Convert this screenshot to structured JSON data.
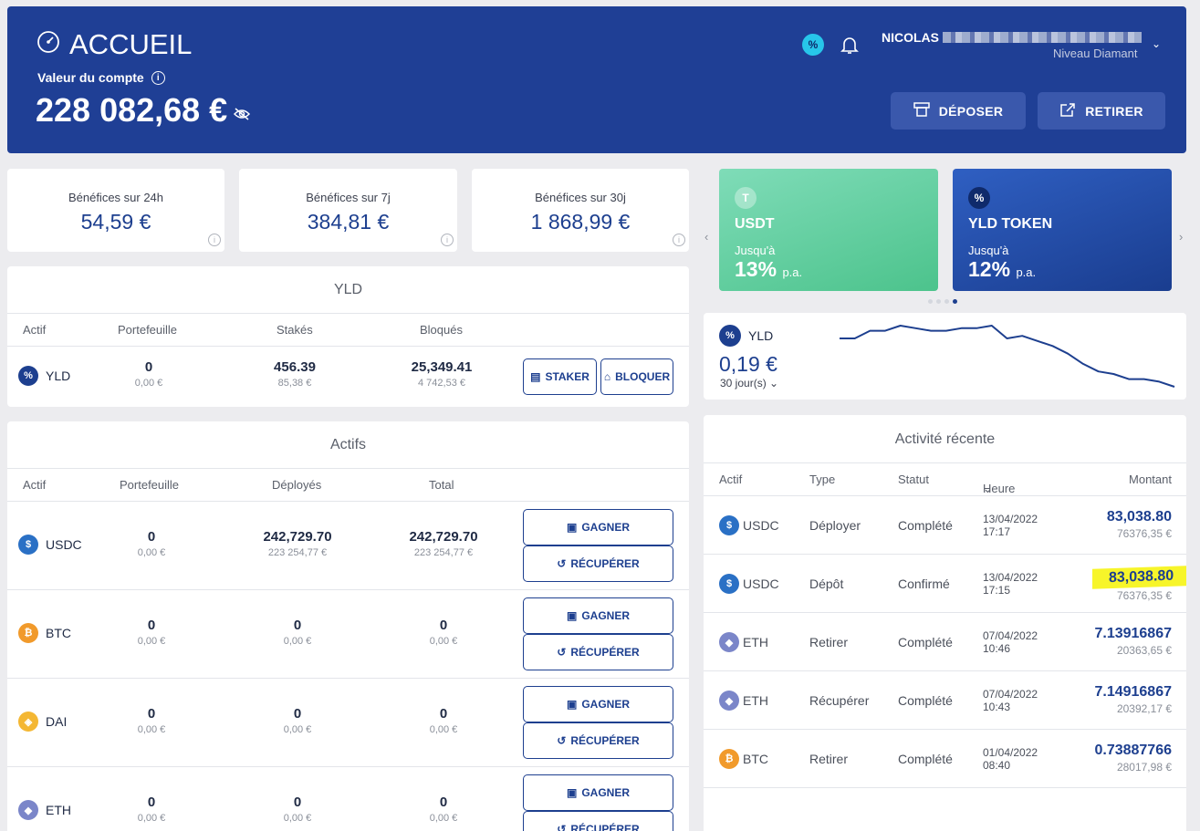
{
  "header": {
    "title": "ACCUEIL",
    "account_label": "Valeur du compte",
    "account_value": "228 082,68 €",
    "user_name": "NICOLAS",
    "user_level": "Niveau Diamant",
    "deposit_label": "DÉPOSER",
    "withdraw_label": "RETIRER"
  },
  "profits": [
    {
      "label": "Bénéfices sur 24h",
      "value": "54,59 €"
    },
    {
      "label": "Bénéfices sur 7j",
      "value": "384,81 €"
    },
    {
      "label": "Bénéfices sur 30j",
      "value": "1 868,99 €"
    }
  ],
  "yld_section": {
    "title": "YLD",
    "headers": [
      "Actif",
      "Portefeuille",
      "Stakés",
      "Bloqués"
    ],
    "row": {
      "asset": "YLD",
      "wallet": "0",
      "wallet_eur": "0,00 €",
      "staked": "456.39",
      "staked_eur": "85,38 €",
      "locked": "25,349.41",
      "locked_eur": "4 742,53 €"
    },
    "stake_label": "STAKER",
    "lock_label": "BLOQUER"
  },
  "actifs_section": {
    "title": "Actifs",
    "headers": [
      "Actif",
      "Portefeuille",
      "Déployés",
      "Total"
    ],
    "earn_label": "GAGNER",
    "recover_label": "RÉCUPÉRER",
    "rows": [
      {
        "asset": "USDC",
        "wallet": "0",
        "wallet_eur": "0,00 €",
        "deployed": "242,729.70",
        "deployed_eur": "223 254,77 €",
        "total": "242,729.70",
        "total_eur": "223 254,77 €"
      },
      {
        "asset": "BTC",
        "wallet": "0",
        "wallet_eur": "0,00 €",
        "deployed": "0",
        "deployed_eur": "0,00 €",
        "total": "0",
        "total_eur": "0,00 €"
      },
      {
        "asset": "DAI",
        "wallet": "0",
        "wallet_eur": "0,00 €",
        "deployed": "0",
        "deployed_eur": "0,00 €",
        "total": "0",
        "total_eur": "0,00 €"
      },
      {
        "asset": "ETH",
        "wallet": "0",
        "wallet_eur": "0,00 €",
        "deployed": "0",
        "deployed_eur": "0,00 €",
        "total": "0",
        "total_eur": "0,00 €"
      }
    ]
  },
  "promos": [
    {
      "name": "USDT",
      "upto": "Jusqu'à",
      "rate": "13%",
      "suffix": "p.a."
    },
    {
      "name": "YLD TOKEN",
      "upto": "Jusqu'à",
      "rate": "12%",
      "suffix": "p.a."
    }
  ],
  "carousel": {
    "dots": 4,
    "active": 4
  },
  "price_widget": {
    "asset": "YLD",
    "price": "0,19 €",
    "period": "30 jour(s)",
    "chart_data": {
      "type": "line",
      "values": [
        0.205,
        0.205,
        0.208,
        0.208,
        0.21,
        0.209,
        0.208,
        0.208,
        0.209,
        0.209,
        0.21,
        0.205,
        0.206,
        0.204,
        0.202,
        0.199,
        0.195,
        0.192,
        0.191,
        0.189,
        0.189,
        0.188,
        0.186
      ]
    }
  },
  "activity": {
    "title": "Activité récente",
    "headers": [
      "Actif",
      "Type",
      "Statut",
      "Heure",
      "Montant"
    ],
    "rows": [
      {
        "asset": "USDC",
        "type": "Déployer",
        "status": "Complété",
        "date": "13/04/2022",
        "time": "17:17",
        "amount": "83,038.80",
        "amount_eur": "76376,35 €",
        "highlight": false
      },
      {
        "asset": "USDC",
        "type": "Dépôt",
        "status": "Confirmé",
        "date": "13/04/2022",
        "time": "17:15",
        "amount": "83,038.80",
        "amount_eur": "76376,35 €",
        "highlight": true
      },
      {
        "asset": "ETH",
        "type": "Retirer",
        "status": "Complété",
        "date": "07/04/2022",
        "time": "10:46",
        "amount": "7.13916867",
        "amount_eur": "20363,65 €",
        "highlight": false
      },
      {
        "asset": "ETH",
        "type": "Récupérer",
        "status": "Complété",
        "date": "07/04/2022",
        "time": "10:43",
        "amount": "7.14916867",
        "amount_eur": "20392,17 €",
        "highlight": false
      },
      {
        "asset": "BTC",
        "type": "Retirer",
        "status": "Complété",
        "date": "01/04/2022",
        "time": "08:40",
        "amount": "0.73887766",
        "amount_eur": "28017,98 €",
        "highlight": false
      }
    ]
  },
  "colors": {
    "brand": "#1f3f95",
    "usdc": "#2a70c5",
    "btc": "#f19a2b",
    "dai": "#f4b733",
    "eth": "#7b86c9",
    "yld": "#1d3f8f",
    "highlight": "#f7f52a"
  }
}
